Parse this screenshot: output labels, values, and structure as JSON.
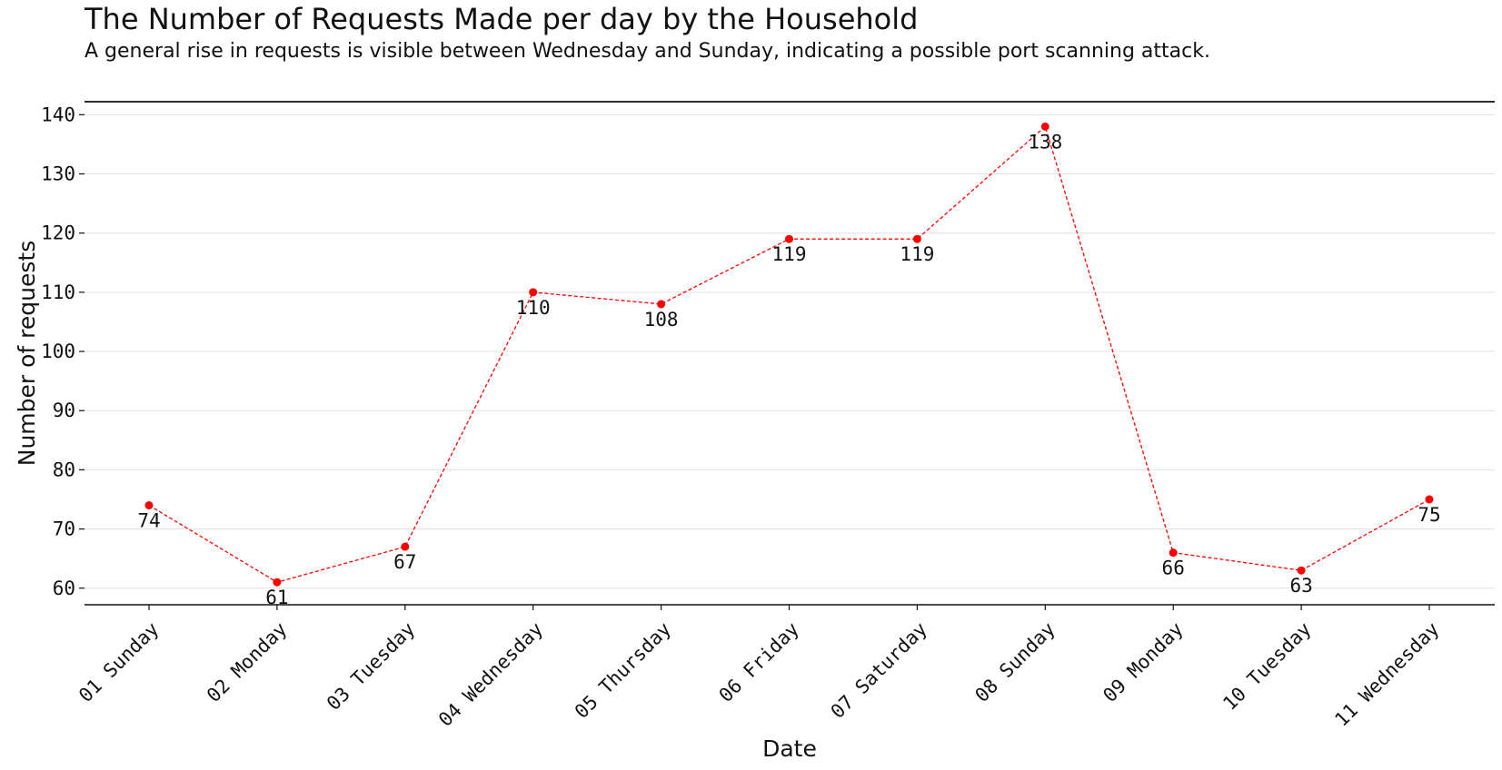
{
  "chart_data": {
    "type": "line",
    "title": "The Number of Requests Made per day by the Household",
    "subtitle": "A general rise in requests is visible between Wednesday and Sunday, indicating a possible port scanning attack.",
    "xlabel": "Date",
    "ylabel": "Number of requests",
    "categories": [
      "01 Sunday",
      "02 Monday",
      "03 Tuesday",
      "04 Wednesday",
      "05 Thursday",
      "06 Friday",
      "07 Saturday",
      "08 Sunday",
      "09 Monday",
      "10 Tuesday",
      "11 Wednesday"
    ],
    "series": [
      {
        "values": [
          74,
          61,
          67,
          110,
          108,
          119,
          119,
          138,
          66,
          63,
          75
        ],
        "color": "#ff0000",
        "line_style": "dashed",
        "markers": true,
        "data_labels": true
      }
    ],
    "ylim": [
      57.2,
      142.2
    ],
    "yticks": [
      60,
      70,
      80,
      90,
      100,
      110,
      120,
      130,
      140
    ],
    "grid": "horizontal",
    "grid_color": "#e0e0e0",
    "legend": "none"
  }
}
